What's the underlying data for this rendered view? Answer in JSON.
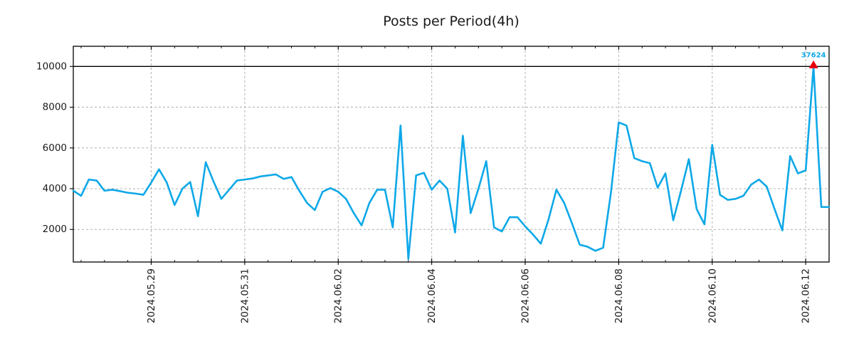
{
  "chart_data": {
    "type": "line",
    "title": "Posts per Period(4h)",
    "period_hours": 4,
    "start": "2024-05-27 08:00",
    "end": "2024-06-12 12:00",
    "line_color": "#0ea8e8",
    "line_width": 2.6,
    "grid": true,
    "grid_color": "#b0b0b0",
    "ylim": [
      400,
      10990
    ],
    "y_ticks": [
      2000,
      4000,
      6000,
      8000,
      10000
    ],
    "x_tick_labels": [
      "2024.05.29",
      "2024.05.31",
      "2024.06.02",
      "2024.06.04",
      "2024.06.06",
      "2024.06.08",
      "2024.06.10",
      "2024.06.12"
    ],
    "x_tick_indices": [
      10,
      22,
      34,
      46,
      58,
      70,
      82,
      94
    ],
    "x_minor_tick_hours": 12,
    "x_minor_tick_every": 3,
    "clip_value": 10000,
    "hline": {
      "y": 10000,
      "color": "#000000"
    },
    "peak": {
      "index": 95,
      "value": 37624,
      "label": "37624",
      "label_color": "#0ea8e8",
      "marker": "triangle-up",
      "marker_color": "#e8000b"
    },
    "values": [
      3900,
      3650,
      4450,
      4400,
      3900,
      3950,
      3880,
      3800,
      3760,
      3700,
      4300,
      4950,
      4300,
      3200,
      4000,
      4330,
      2650,
      5300,
      4350,
      3500,
      3950,
      4400,
      4450,
      4500,
      4600,
      4650,
      4700,
      4480,
      4570,
      3900,
      3300,
      2950,
      3850,
      4030,
      3850,
      3500,
      2800,
      2200,
      3300,
      3950,
      3950,
      2100,
      7100,
      550,
      4650,
      4780,
      3950,
      4400,
      4000,
      1850,
      6600,
      2800,
      4000,
      5350,
      2100,
      1900,
      2600,
      2600,
      2150,
      1750,
      1300,
      2500,
      3950,
      3300,
      2300,
      1250,
      1150,
      950,
      1100,
      3800,
      7250,
      7100,
      5500,
      5350,
      5250,
      4050,
      4750,
      2450,
      3900,
      5450,
      3000,
      2250,
      6150,
      3700,
      3450,
      3500,
      3650,
      4200,
      4450,
      4100,
      3000,
      1950,
      5600,
      4750,
      4900,
      37624,
      3100,
      3100
    ]
  }
}
